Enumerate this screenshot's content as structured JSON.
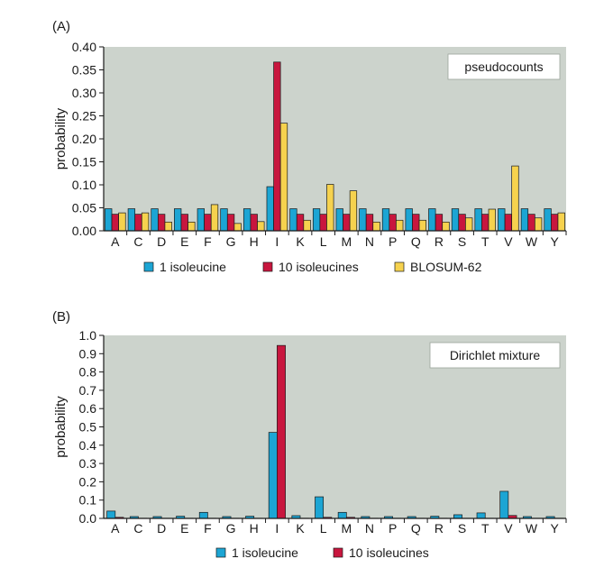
{
  "colors": {
    "plot_bg": "#ccd3cc",
    "one_isoleucine": "#1ca5d4",
    "ten_isoleucines": "#c8163e",
    "blosum62": "#f6d24e",
    "axis": "#1a1a1a"
  },
  "chart_data": [
    {
      "panel_label": "(A)",
      "type": "bar",
      "annotation": "pseudocounts",
      "ylabel": "probability",
      "xlabel": "",
      "ylim": [
        0,
        0.4
      ],
      "yticks": [
        "0.00",
        "0.05",
        "0.10",
        "0.15",
        "0.20",
        "0.25",
        "0.30",
        "0.35",
        "0.40"
      ],
      "categories": [
        "A",
        "C",
        "D",
        "E",
        "F",
        "G",
        "H",
        "I",
        "K",
        "L",
        "M",
        "N",
        "P",
        "Q",
        "R",
        "S",
        "T",
        "V",
        "W",
        "Y"
      ],
      "legend_position": "bottom",
      "grid": false,
      "series": [
        {
          "name": "1 isoleucine",
          "color_key": "one_isoleucine",
          "values": [
            0.048,
            0.048,
            0.048,
            0.048,
            0.048,
            0.048,
            0.048,
            0.096,
            0.048,
            0.048,
            0.048,
            0.048,
            0.048,
            0.048,
            0.048,
            0.048,
            0.048,
            0.048,
            0.048,
            0.048
          ]
        },
        {
          "name": "10 isoleucines",
          "color_key": "ten_isoleucines",
          "values": [
            0.036,
            0.036,
            0.036,
            0.036,
            0.036,
            0.036,
            0.036,
            0.367,
            0.036,
            0.036,
            0.036,
            0.036,
            0.036,
            0.036,
            0.036,
            0.036,
            0.036,
            0.036,
            0.036,
            0.036
          ]
        },
        {
          "name": "BLOSUM-62",
          "color_key": "blosum62",
          "values": [
            0.039,
            0.039,
            0.019,
            0.019,
            0.057,
            0.016,
            0.02,
            0.234,
            0.023,
            0.101,
            0.087,
            0.019,
            0.023,
            0.023,
            0.019,
            0.028,
            0.047,
            0.141,
            0.028,
            0.039
          ]
        }
      ]
    },
    {
      "panel_label": "(B)",
      "type": "bar",
      "annotation": "Dirichlet mixture",
      "ylabel": "probability",
      "xlabel": "",
      "ylim": [
        0,
        1.0
      ],
      "yticks": [
        "0.0",
        "0.1",
        "0.2",
        "0.3",
        "0.4",
        "0.5",
        "0.6",
        "0.7",
        "0.8",
        "0.9",
        "1.0"
      ],
      "categories": [
        "A",
        "C",
        "D",
        "E",
        "F",
        "G",
        "H",
        "I",
        "K",
        "L",
        "M",
        "N",
        "P",
        "Q",
        "R",
        "S",
        "T",
        "V",
        "W",
        "Y"
      ],
      "legend_position": "bottom",
      "grid": false,
      "series": [
        {
          "name": "1 isoleucine",
          "color_key": "one_isoleucine",
          "values": [
            0.04,
            0.01,
            0.01,
            0.012,
            0.033,
            0.01,
            0.012,
            0.47,
            0.015,
            0.118,
            0.033,
            0.01,
            0.01,
            0.01,
            0.012,
            0.02,
            0.03,
            0.148,
            0.01,
            0.01
          ]
        },
        {
          "name": "10 isoleucines",
          "color_key": "ten_isoleucines",
          "values": [
            0.006,
            0.001,
            0.001,
            0.001,
            0.001,
            0.001,
            0.001,
            0.945,
            0.001,
            0.006,
            0.006,
            0.001,
            0.001,
            0.001,
            0.001,
            0.001,
            0.001,
            0.016,
            0.001,
            0.001
          ]
        }
      ]
    }
  ]
}
